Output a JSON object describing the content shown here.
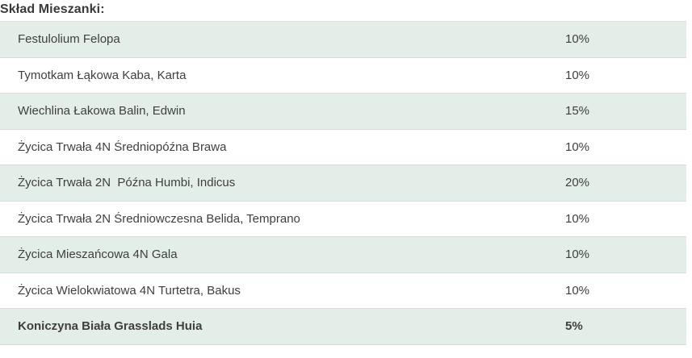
{
  "title": "Skład Mieszanki:",
  "table": {
    "rows": [
      {
        "name": "Festulolium Felopa",
        "percent": "10%"
      },
      {
        "name": "Tymotkam Łąkowa Kaba, Karta",
        "percent": "10%"
      },
      {
        "name": "Wiechlina Łakowa Balin, Edwin",
        "percent": "15%"
      },
      {
        "name": "Życica Trwała 4N Średniopóźna Brawa",
        "percent": "10%"
      },
      {
        "name": "Życica Trwała 2N  Późna Humbi, Indicus",
        "percent": "20%"
      },
      {
        "name": "Życica Trwała 2N Średniowczesna Belida, Temprano",
        "percent": "10%"
      },
      {
        "name": "Życica Mieszańcowa 4N Gala",
        "percent": "10%"
      },
      {
        "name": "Życica Wielokwiatowa 4N Turtetra, Bakus",
        "percent": "10%"
      },
      {
        "name": "Koniczyna Biała Grasslads Huia",
        "percent": "5%"
      }
    ]
  },
  "colors": {
    "row_alt_bg": "#e4eee8",
    "row_bg": "#ffffff",
    "row_border": "#d9dcd9",
    "text": "#3f3f3f"
  }
}
